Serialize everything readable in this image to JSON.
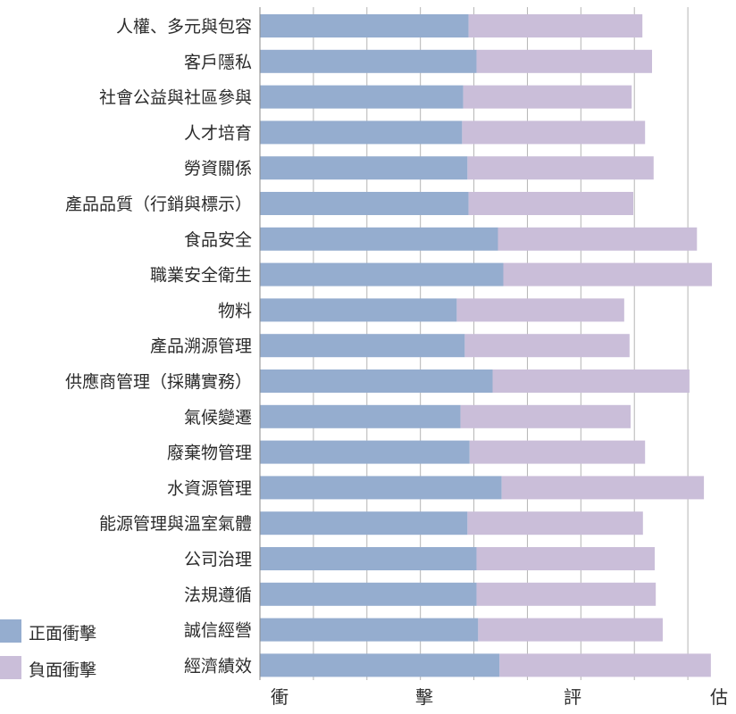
{
  "chart_data": {
    "type": "bar",
    "orientation": "horizontal",
    "stacked": true,
    "categories": [
      "人權、多元與包容",
      "客戶隱私",
      "社會公益與社區參與",
      "人才培育",
      "勞資關係",
      "產品品質（行銷與標示）",
      "食品安全",
      "職業安全衛生",
      "物料",
      "產品溯源管理",
      "供應商管理（採購實務）",
      "氣候變遷",
      "廢棄物管理",
      "水資源管理",
      "能源管理與溫室氣體",
      "公司治理",
      "法規遵循",
      "誠信經營",
      "經濟績效"
    ],
    "series": [
      {
        "name": "正面衝擊",
        "color": "#95adcf",
        "values": [
          3.9,
          4.05,
          3.8,
          3.78,
          3.88,
          3.9,
          4.45,
          4.55,
          3.68,
          3.83,
          4.35,
          3.75,
          3.92,
          4.52,
          3.88,
          4.05,
          4.05,
          4.08,
          4.48
        ]
      },
      {
        "name": "負面衝擊",
        "color": "#cabed9",
        "values": [
          3.25,
          3.28,
          3.15,
          3.42,
          3.48,
          3.08,
          3.72,
          3.9,
          3.13,
          3.08,
          3.68,
          3.18,
          3.28,
          3.78,
          3.28,
          3.33,
          3.35,
          3.45,
          3.95
        ]
      }
    ],
    "xlim": [
      0,
      9
    ],
    "xlabel": "衝擊評估",
    "xlabel_chars": [
      "衝",
      "擊",
      "評",
      "估"
    ],
    "grid": true,
    "legend_position": "bottom-left"
  }
}
